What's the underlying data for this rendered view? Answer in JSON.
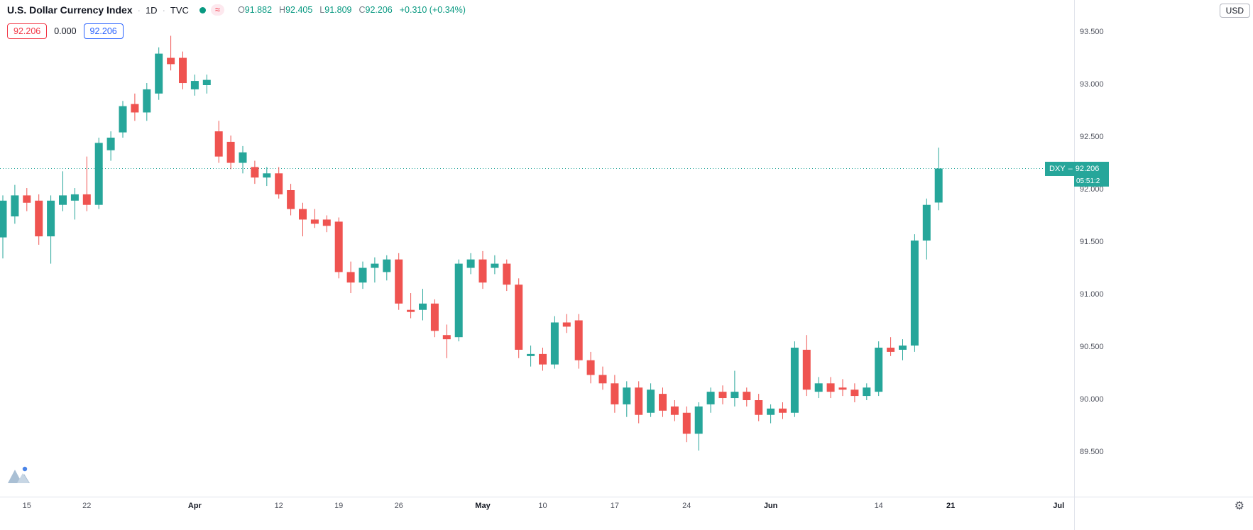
{
  "header": {
    "symbol_name": "U.S. Dollar Currency Index",
    "separator": "·",
    "interval": "1D",
    "exchange": "TVC",
    "ohlc": {
      "o_label": "O",
      "o": "91.882",
      "h_label": "H",
      "h": "92.405",
      "l_label": "L",
      "l": "91.809",
      "c_label": "C",
      "c": "92.206",
      "change": "+0.310 (+0.34%)"
    }
  },
  "badges": {
    "sell": "92.206",
    "spread": "0.000",
    "buy": "92.206"
  },
  "top_right": {
    "currency_button": "USD"
  },
  "price_label": {
    "symbol": "DXY",
    "dash": "–",
    "price": "92.206",
    "countdown": "05:51:2"
  },
  "icons": {
    "approx": "≈",
    "gear": "⚙"
  },
  "colors": {
    "up": "#26a69a",
    "down": "#ef5350",
    "value_text": "#089981",
    "sell_badge": "#f23645",
    "buy_badge": "#2962ff",
    "axis_text": "#50535e"
  },
  "chart_data": {
    "type": "candlestick",
    "title": "U.S. Dollar Currency Index",
    "symbol": "DXY",
    "interval": "1D",
    "exchange": "TVC",
    "last_price": 92.206,
    "last_ohlc": {
      "o": 91.882,
      "h": 92.405,
      "l": 91.809,
      "c": 92.206,
      "change_abs": 0.31,
      "change_pct": 0.34
    },
    "ylim": [
      89.2,
      93.8
    ],
    "grid": false,
    "legend_position": "top-left",
    "price_ticks": [
      "93.500",
      "93.000",
      "92.500",
      "92.000",
      "91.500",
      "91.000",
      "90.500",
      "90.000",
      "89.500"
    ],
    "time_ticks": [
      {
        "label": "15",
        "i": 2,
        "month": false
      },
      {
        "label": "22",
        "i": 7,
        "month": false
      },
      {
        "label": "Apr",
        "i": 16,
        "month": true
      },
      {
        "label": "12",
        "i": 23,
        "month": false
      },
      {
        "label": "19",
        "i": 28,
        "month": false
      },
      {
        "label": "26",
        "i": 33,
        "month": false
      },
      {
        "label": "May",
        "i": 40,
        "month": true
      },
      {
        "label": "10",
        "i": 45,
        "month": false
      },
      {
        "label": "17",
        "i": 51,
        "month": false
      },
      {
        "label": "24",
        "i": 57,
        "month": false
      },
      {
        "label": "Jun",
        "i": 64,
        "month": true
      },
      {
        "label": "14",
        "i": 73,
        "month": false
      },
      {
        "label": "21",
        "i": 79,
        "month": true
      },
      {
        "label": "Jul",
        "i": 88,
        "month": true
      }
    ],
    "candles_ohlc": [
      [
        91.55,
        91.95,
        91.35,
        91.9
      ],
      [
        91.75,
        92.05,
        91.68,
        91.95
      ],
      [
        91.95,
        92.02,
        91.8,
        91.88
      ],
      [
        91.9,
        91.96,
        91.48,
        91.56
      ],
      [
        91.56,
        91.95,
        91.3,
        91.9
      ],
      [
        91.86,
        92.18,
        91.8,
        91.95
      ],
      [
        91.9,
        92.02,
        91.72,
        91.96
      ],
      [
        91.96,
        92.32,
        91.8,
        91.86
      ],
      [
        91.86,
        92.5,
        91.82,
        92.45
      ],
      [
        92.38,
        92.56,
        92.28,
        92.5
      ],
      [
        92.55,
        92.85,
        92.5,
        92.8
      ],
      [
        92.82,
        92.92,
        92.66,
        92.74
      ],
      [
        92.74,
        93.02,
        92.66,
        92.96
      ],
      [
        92.92,
        93.36,
        92.86,
        93.3
      ],
      [
        93.26,
        93.47,
        93.14,
        93.2
      ],
      [
        93.26,
        93.32,
        92.96,
        93.02
      ],
      [
        92.96,
        93.1,
        92.9,
        93.04
      ],
      [
        93.0,
        93.1,
        92.92,
        93.05
      ],
      [
        92.56,
        92.66,
        92.26,
        92.32
      ],
      [
        92.46,
        92.52,
        92.2,
        92.26
      ],
      [
        92.26,
        92.42,
        92.16,
        92.36
      ],
      [
        92.22,
        92.28,
        92.06,
        92.12
      ],
      [
        92.12,
        92.22,
        92.04,
        92.16
      ],
      [
        92.16,
        92.22,
        91.92,
        91.96
      ],
      [
        92.0,
        92.06,
        91.76,
        91.82
      ],
      [
        91.82,
        91.88,
        91.56,
        91.72
      ],
      [
        91.72,
        91.82,
        91.64,
        91.68
      ],
      [
        91.72,
        91.76,
        91.6,
        91.66
      ],
      [
        91.7,
        91.74,
        91.16,
        91.22
      ],
      [
        91.22,
        91.32,
        91.02,
        91.12
      ],
      [
        91.12,
        91.32,
        91.06,
        91.26
      ],
      [
        91.26,
        91.36,
        91.12,
        91.3
      ],
      [
        91.22,
        91.38,
        91.14,
        91.34
      ],
      [
        91.34,
        91.4,
        90.86,
        90.92
      ],
      [
        90.86,
        91.02,
        90.78,
        90.84
      ],
      [
        90.86,
        91.06,
        90.76,
        90.92
      ],
      [
        90.92,
        90.96,
        90.6,
        90.66
      ],
      [
        90.62,
        90.72,
        90.4,
        90.58
      ],
      [
        90.6,
        91.34,
        90.56,
        91.3
      ],
      [
        91.26,
        91.4,
        91.2,
        91.34
      ],
      [
        91.34,
        91.42,
        91.06,
        91.12
      ],
      [
        91.26,
        91.38,
        91.2,
        91.3
      ],
      [
        91.3,
        91.34,
        91.04,
        91.1
      ],
      [
        91.1,
        91.16,
        90.4,
        90.48
      ],
      [
        90.42,
        90.52,
        90.32,
        90.44
      ],
      [
        90.44,
        90.5,
        90.28,
        90.34
      ],
      [
        90.34,
        90.8,
        90.3,
        90.74
      ],
      [
        90.74,
        90.82,
        90.64,
        90.7
      ],
      [
        90.76,
        90.82,
        90.3,
        90.38
      ],
      [
        90.38,
        90.46,
        90.16,
        90.24
      ],
      [
        90.24,
        90.32,
        90.1,
        90.16
      ],
      [
        90.16,
        90.24,
        89.88,
        89.96
      ],
      [
        89.96,
        90.18,
        89.84,
        90.12
      ],
      [
        90.12,
        90.18,
        89.78,
        89.86
      ],
      [
        89.88,
        90.16,
        89.84,
        90.1
      ],
      [
        90.06,
        90.12,
        89.84,
        89.9
      ],
      [
        89.94,
        90.0,
        89.8,
        89.86
      ],
      [
        89.88,
        89.94,
        89.6,
        89.68
      ],
      [
        89.68,
        89.98,
        89.52,
        89.94
      ],
      [
        89.96,
        90.12,
        89.88,
        90.08
      ],
      [
        90.08,
        90.14,
        89.96,
        90.02
      ],
      [
        90.02,
        90.28,
        89.94,
        90.08
      ],
      [
        90.08,
        90.12,
        89.94,
        90.0
      ],
      [
        90.0,
        90.06,
        89.8,
        89.86
      ],
      [
        89.86,
        89.96,
        89.78,
        89.92
      ],
      [
        89.92,
        89.98,
        89.82,
        89.88
      ],
      [
        89.88,
        90.56,
        89.84,
        90.5
      ],
      [
        90.48,
        90.62,
        90.04,
        90.1
      ],
      [
        90.08,
        90.22,
        90.02,
        90.16
      ],
      [
        90.16,
        90.22,
        90.02,
        90.08
      ],
      [
        90.12,
        90.2,
        90.04,
        90.1
      ],
      [
        90.1,
        90.16,
        89.98,
        90.04
      ],
      [
        90.04,
        90.16,
        90.0,
        90.12
      ],
      [
        90.08,
        90.56,
        90.04,
        90.5
      ],
      [
        90.5,
        90.6,
        90.42,
        90.46
      ],
      [
        90.48,
        90.58,
        90.38,
        90.52
      ],
      [
        90.52,
        91.58,
        90.46,
        91.52
      ],
      [
        91.52,
        91.92,
        91.34,
        91.86
      ],
      [
        91.882,
        92.405,
        91.809,
        92.206
      ]
    ]
  }
}
